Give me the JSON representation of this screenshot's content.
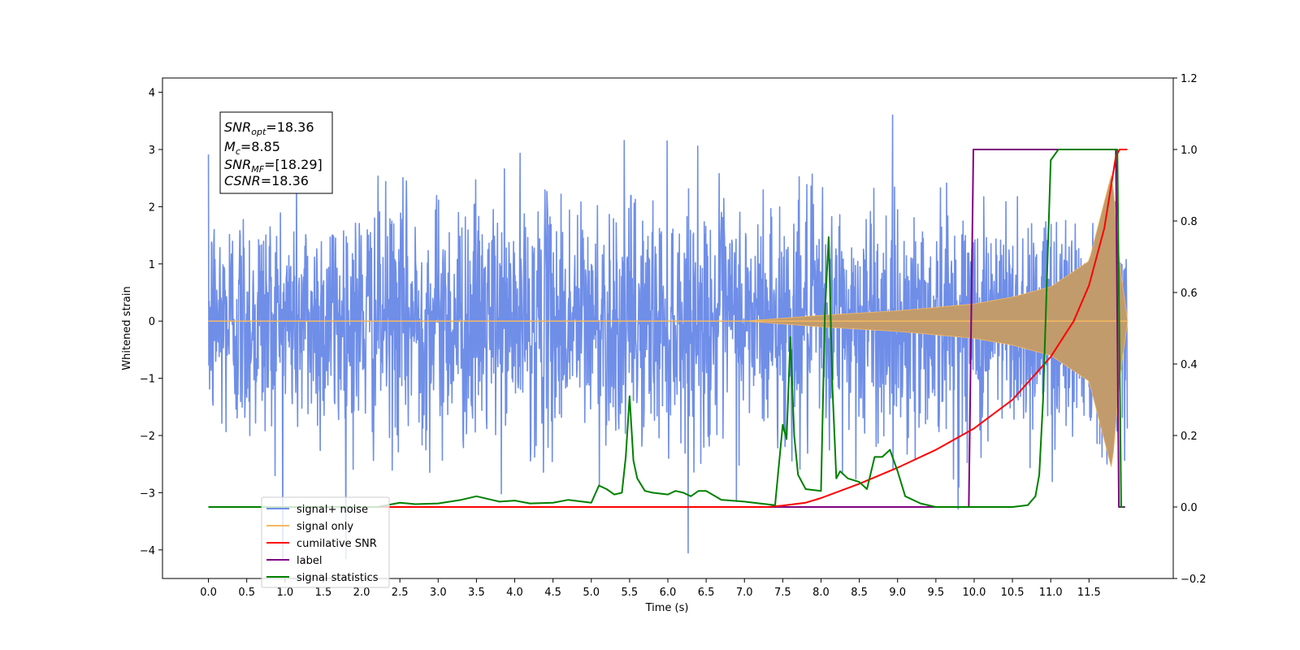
{
  "chart_data": {
    "type": "line",
    "xlabel": "Time (s)",
    "ylabel": "Whitened strain",
    "xlim": [
      -0.6,
      12.6
    ],
    "ylim": [
      -4.5,
      4.25
    ],
    "y2lim": [
      -0.2,
      1.2
    ],
    "x_ticks": [
      "0.0",
      "0.5",
      "1.0",
      "1.5",
      "2.0",
      "2.5",
      "3.0",
      "3.5",
      "4.0",
      "4.5",
      "5.0",
      "5.5",
      "6.0",
      "6.5",
      "7.0",
      "7.5",
      "8.0",
      "8.5",
      "9.0",
      "9.5",
      "10.0",
      "10.5",
      "11.0",
      "11.5"
    ],
    "x_tick_values": [
      0,
      0.5,
      1,
      1.5,
      2,
      2.5,
      3,
      3.5,
      4,
      4.5,
      5,
      5.5,
      6,
      6.5,
      7,
      7.5,
      8,
      8.5,
      9,
      9.5,
      10,
      10.5,
      11,
      11.5
    ],
    "y_ticks": [
      "−4",
      "−3",
      "−2",
      "−1",
      "0",
      "1",
      "2",
      "3",
      "4"
    ],
    "y_tick_values": [
      -4,
      -3,
      -2,
      -1,
      0,
      1,
      2,
      3,
      4
    ],
    "y2_ticks": [
      "−0.2",
      "0.0",
      "0.2",
      "0.4",
      "0.6",
      "0.8",
      "1.0",
      "1.2"
    ],
    "y2_tick_values": [
      -0.2,
      0,
      0.2,
      0.4,
      0.6,
      0.8,
      1,
      1.2
    ],
    "legend_position": "lower-left",
    "colors": {
      "noise": "#6f8ee8",
      "signal": "#f5b860",
      "signal_fill": "#c19b6c",
      "snr": "#ff0000",
      "label": "#800080",
      "stats": "#008000"
    },
    "annotation": {
      "snr_opt_value": "=18.36",
      "mc_value": "=8.85",
      "snr_mf_value": "=[18.29]",
      "csnr_value": "=18.36"
    },
    "series": [
      {
        "name": "signal+ noise",
        "axis": "left",
        "t_range": [
          0,
          12.0
        ],
        "amplitude_range": [
          -4.15,
          3.85
        ],
        "description_values": {
          "typical_max": 2.7,
          "typical_min": -3.0
        }
      },
      {
        "name": "signal only",
        "axis": "left",
        "envelope_x": [
          7.0,
          8.0,
          9.0,
          10.0,
          10.5,
          11.0,
          11.5,
          11.8,
          11.9,
          12.0
        ],
        "envelope_y": [
          0.0,
          0.1,
          0.18,
          0.3,
          0.42,
          0.6,
          1.05,
          2.6,
          1.0,
          0.05
        ]
      },
      {
        "name": "cumilative SNR",
        "axis": "right",
        "x": [
          0,
          7.3,
          7.5,
          7.8,
          8.0,
          8.5,
          9.0,
          9.5,
          10.0,
          10.5,
          11.0,
          11.3,
          11.5,
          11.7,
          11.85,
          11.9,
          12.0
        ],
        "y": [
          0,
          0,
          0.004,
          0.012,
          0.025,
          0.065,
          0.11,
          0.16,
          0.22,
          0.3,
          0.42,
          0.52,
          0.62,
          0.78,
          0.98,
          1.0,
          1.0
        ]
      },
      {
        "name": "label",
        "axis": "right",
        "x": [
          0,
          9.93,
          9.99,
          11.85,
          11.89,
          11.97
        ],
        "y": [
          0,
          0,
          1.0,
          1.0,
          0.0,
          0.0
        ]
      },
      {
        "name": "signal statistics",
        "axis": "right",
        "x": [
          0,
          0.2,
          0.5,
          1,
          1.5,
          2,
          2.2,
          2.5,
          2.7,
          3,
          3.3,
          3.5,
          3.7,
          3.8,
          4,
          4.2,
          4.5,
          4.7,
          5,
          5.1,
          5.2,
          5.3,
          5.4,
          5.45,
          5.5,
          5.55,
          5.6,
          5.7,
          5.8,
          6,
          6.1,
          6.2,
          6.3,
          6.4,
          6.5,
          6.7,
          7,
          7.2,
          7.4,
          7.5,
          7.55,
          7.6,
          7.65,
          7.7,
          7.8,
          8,
          8.05,
          8.1,
          8.15,
          8.2,
          8.25,
          8.35,
          8.5,
          8.6,
          8.7,
          8.8,
          8.9,
          9.0,
          9.1,
          9.3,
          9.5,
          10,
          10.5,
          10.7,
          10.8,
          10.85,
          10.9,
          11.0,
          11.1,
          11.2,
          11.5,
          11.87,
          11.92,
          11.95
        ],
        "y": [
          0,
          0,
          0,
          0,
          0,
          0,
          0,
          0.012,
          0.008,
          0.01,
          0.02,
          0.03,
          0.02,
          0.015,
          0.018,
          0.01,
          0.012,
          0.02,
          0.012,
          0.06,
          0.05,
          0.035,
          0.04,
          0.14,
          0.31,
          0.13,
          0.08,
          0.045,
          0.04,
          0.035,
          0.045,
          0.04,
          0.03,
          0.045,
          0.045,
          0.02,
          0.015,
          0.01,
          0.005,
          0.23,
          0.19,
          0.475,
          0.2,
          0.09,
          0.05,
          0.045,
          0.54,
          0.755,
          0.33,
          0.08,
          0.1,
          0.08,
          0.07,
          0.05,
          0.14,
          0.14,
          0.16,
          0.1,
          0.03,
          0.01,
          0.0,
          0.0,
          0.0,
          0.005,
          0.03,
          0.09,
          0.3,
          0.97,
          1.0,
          1.0,
          1.0,
          1.0,
          0.0,
          0.0
        ]
      }
    ]
  }
}
